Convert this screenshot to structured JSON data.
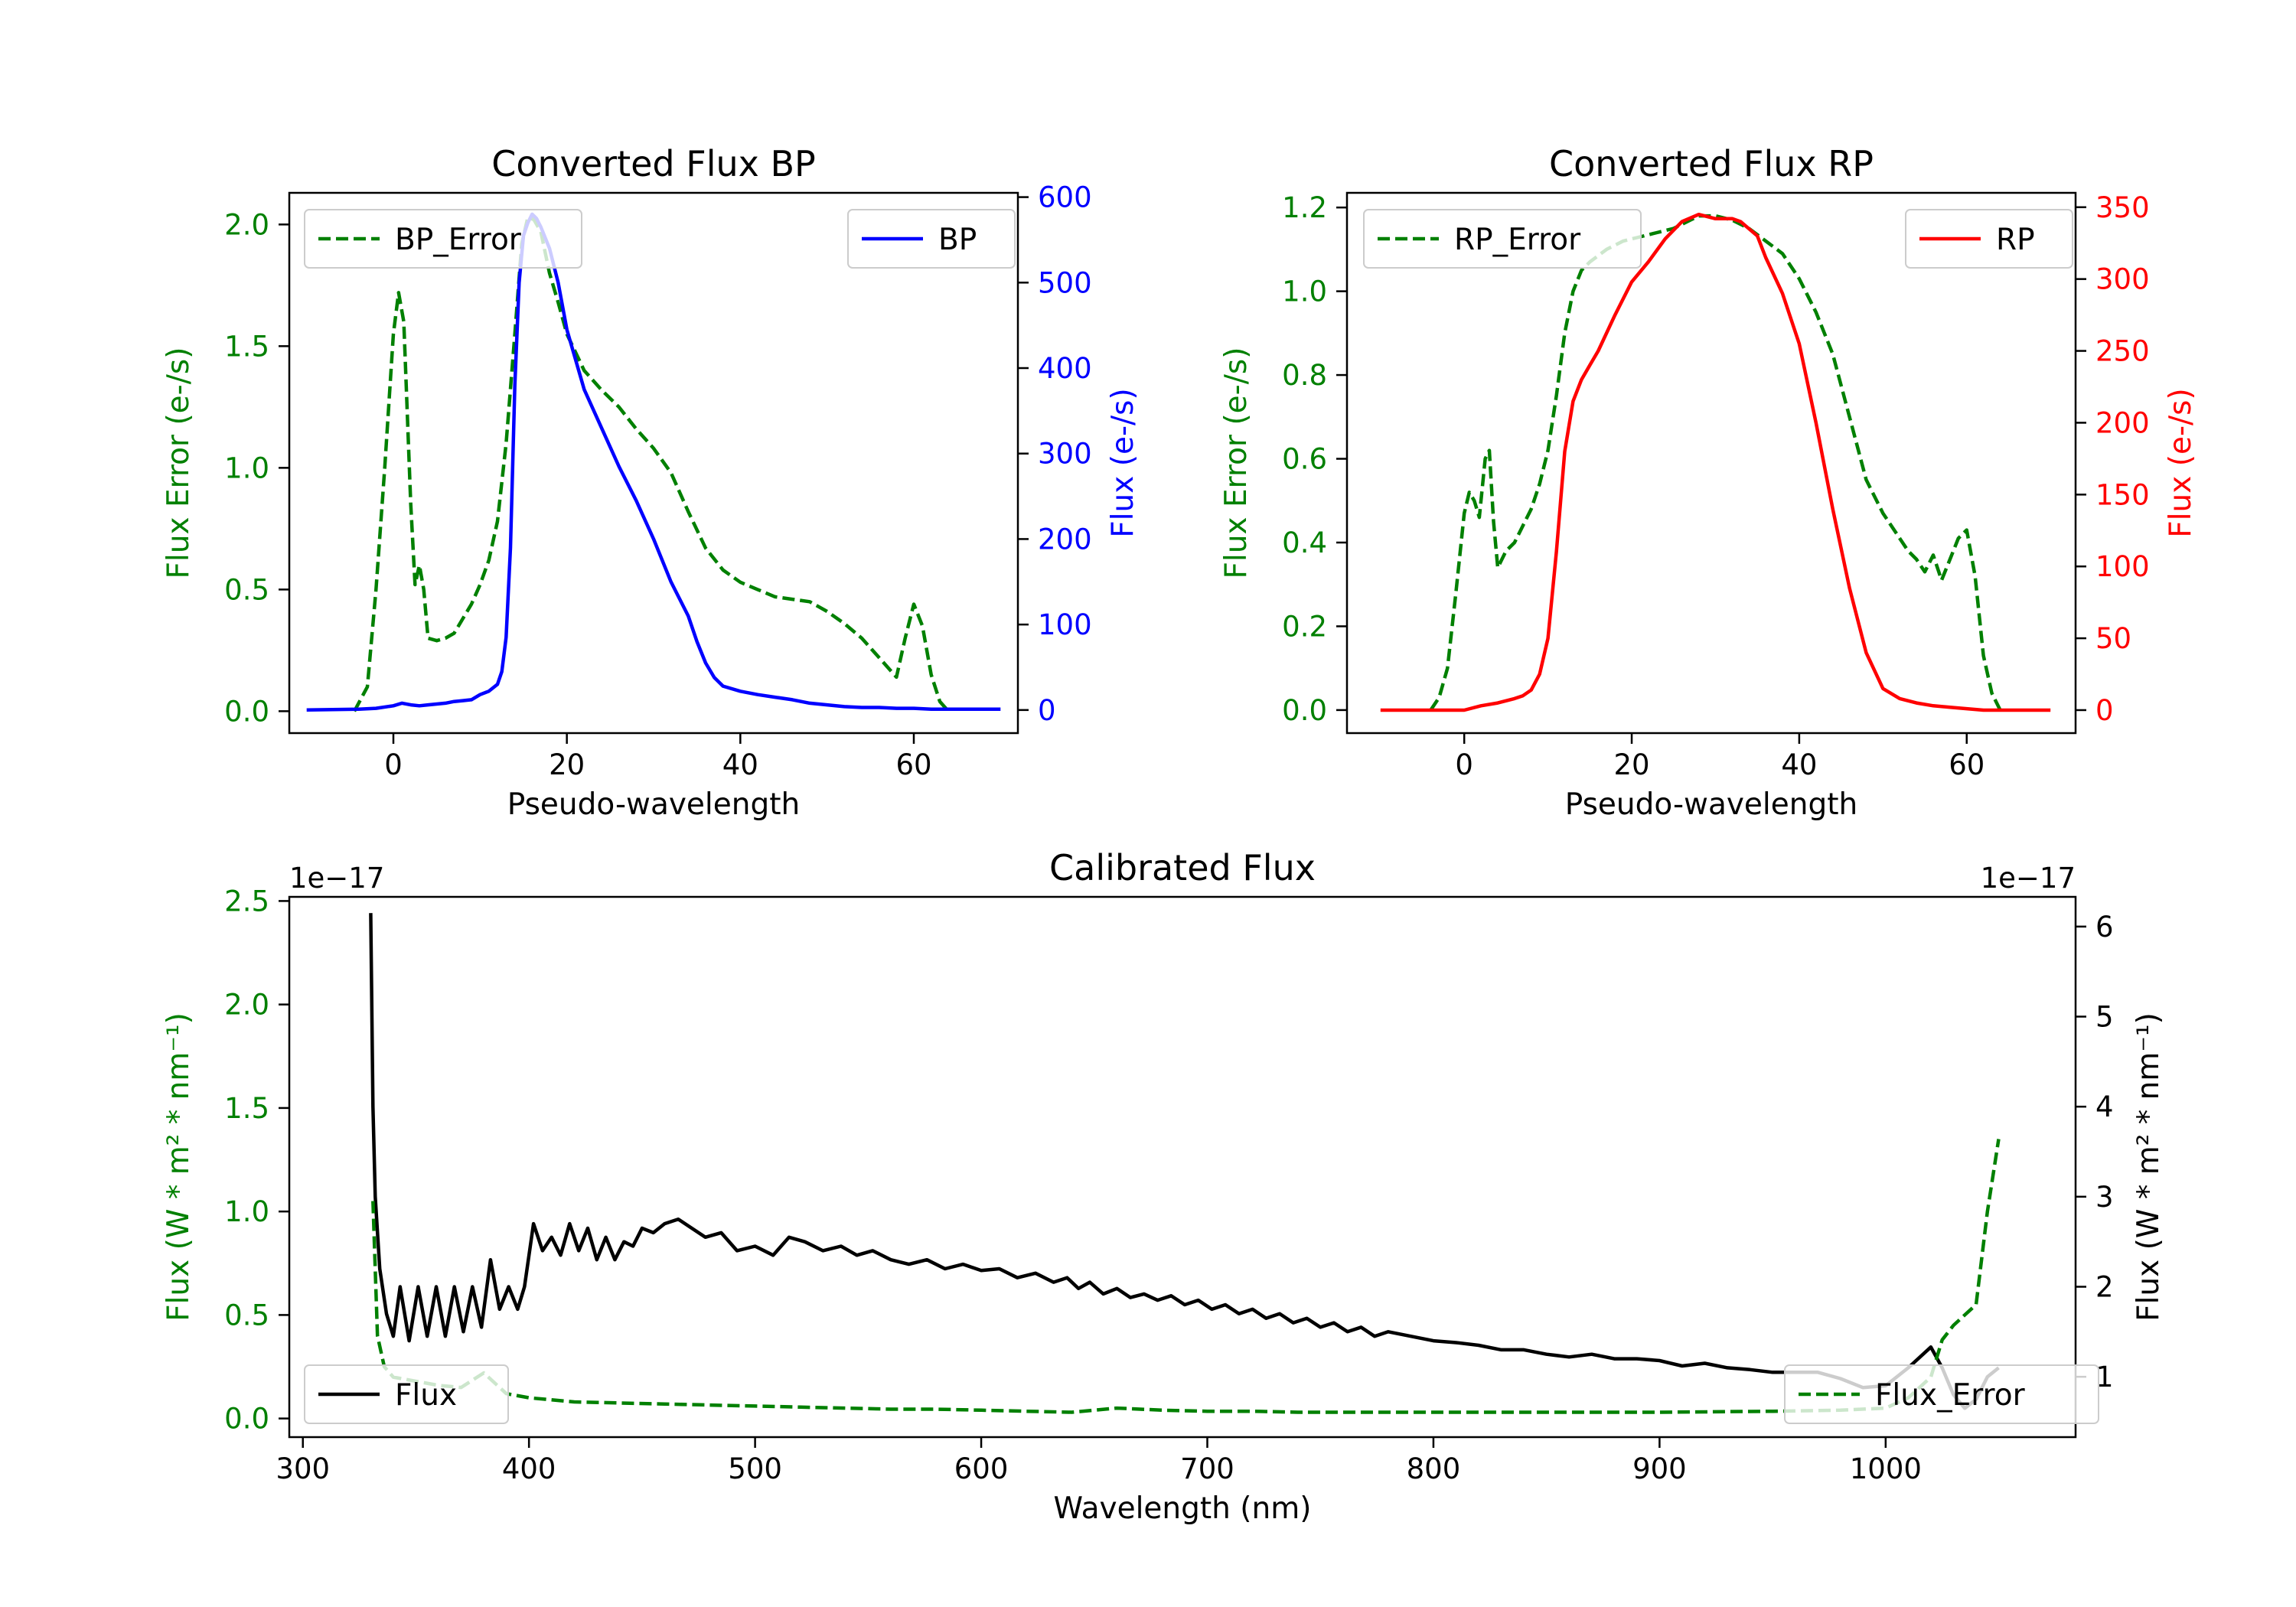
{
  "chart_data": [
    {
      "type": "line",
      "id": "bp",
      "title": "Converted Flux BP",
      "xlabel": "Pseudo-wavelength",
      "ylabel_left": "Flux Error (e-/s)",
      "ylabel_right": "Flux (e-/s)",
      "xlim": [
        -12,
        72
      ],
      "ylim_left": [
        -0.09,
        2.13
      ],
      "ylim_right": [
        -27,
        605
      ],
      "x_ticks": [
        0,
        20,
        40,
        60
      ],
      "y_ticks_left": [
        "0.0",
        "0.5",
        "1.0",
        "1.5",
        "2.0"
      ],
      "y_ticks_right": [
        "0",
        "100",
        "200",
        "300",
        "400",
        "500",
        "600"
      ],
      "colors": {
        "left_axis": "#008000",
        "right_axis": "#0000ff"
      },
      "legends": {
        "left": "BP_Error",
        "right": "BP"
      },
      "series": [
        {
          "name": "BP_Error",
          "axis": "left",
          "color": "#008000",
          "style": "dashed",
          "x": [
            -4.5,
            -3,
            -2,
            -1,
            0,
            0.6,
            1.2,
            2,
            2.5,
            3,
            3.5,
            4,
            5,
            6,
            7,
            8,
            9,
            10,
            11,
            12,
            13,
            14,
            14.8,
            15.5,
            16.2,
            17,
            18,
            19,
            20,
            22,
            24,
            26,
            28,
            30,
            32,
            34,
            36,
            38,
            40,
            42,
            44,
            46,
            48,
            50,
            52,
            54,
            56,
            58,
            59,
            60,
            61,
            62,
            63,
            64
          ],
          "y": [
            0.0,
            0.1,
            0.5,
            1.0,
            1.55,
            1.72,
            1.6,
            0.85,
            0.52,
            0.6,
            0.5,
            0.3,
            0.29,
            0.3,
            0.32,
            0.38,
            0.44,
            0.52,
            0.62,
            0.78,
            1.1,
            1.55,
            1.92,
            2.03,
            2.02,
            1.97,
            1.8,
            1.68,
            1.55,
            1.4,
            1.32,
            1.25,
            1.16,
            1.08,
            0.98,
            0.82,
            0.67,
            0.58,
            0.53,
            0.5,
            0.47,
            0.46,
            0.45,
            0.41,
            0.36,
            0.3,
            0.22,
            0.14,
            0.3,
            0.44,
            0.35,
            0.15,
            0.04,
            0.0
          ]
        },
        {
          "name": "BP",
          "axis": "right",
          "color": "#0000ff",
          "style": "solid",
          "x": [
            -10,
            -4,
            -2,
            0,
            1,
            2,
            3,
            4,
            5,
            6,
            7,
            8,
            9,
            10,
            11,
            12,
            12.5,
            13,
            13.5,
            14,
            14.5,
            15,
            15.5,
            16,
            16.5,
            17,
            18,
            19,
            20,
            22,
            24,
            26,
            28,
            30,
            32,
            34,
            35,
            36,
            37,
            38,
            40,
            42,
            44,
            46,
            48,
            50,
            52,
            54,
            56,
            58,
            60,
            62,
            64,
            66,
            70
          ],
          "y": [
            0,
            1,
            2,
            5,
            8,
            6,
            5,
            6,
            7,
            8,
            10,
            11,
            12,
            18,
            22,
            30,
            45,
            85,
            190,
            380,
            500,
            555,
            570,
            580,
            575,
            565,
            540,
            500,
            445,
            375,
            330,
            285,
            245,
            200,
            150,
            110,
            80,
            55,
            38,
            28,
            22,
            18,
            15,
            12,
            8,
            6,
            4,
            3,
            3,
            2,
            2,
            1,
            1,
            1,
            1
          ]
        }
      ]
    },
    {
      "type": "line",
      "id": "rp",
      "title": "Converted Flux RP",
      "xlabel": "Pseudo-wavelength",
      "ylabel_left": "Flux Error (e-/s)",
      "ylabel_right": "Flux (e-/s)",
      "xlim": [
        -14,
        73
      ],
      "ylim_left": [
        -0.055,
        1.235
      ],
      "ylim_right": [
        -16,
        360
      ],
      "x_ticks": [
        0,
        20,
        40,
        60
      ],
      "y_ticks_left": [
        "0.0",
        "0.2",
        "0.4",
        "0.6",
        "0.8",
        "1.0",
        "1.2"
      ],
      "y_ticks_right": [
        "0",
        "50",
        "100",
        "150",
        "200",
        "250",
        "300",
        "350"
      ],
      "colors": {
        "left_axis": "#008000",
        "right_axis": "#ff0000"
      },
      "legends": {
        "left": "RP_Error",
        "right": "RP"
      },
      "series": [
        {
          "name": "RP_Error",
          "axis": "left",
          "color": "#008000",
          "style": "dashed",
          "x": [
            -4,
            -3,
            -2,
            -1,
            0,
            0.6,
            1.2,
            1.8,
            2.5,
            3,
            3.5,
            4,
            5,
            6,
            7,
            8,
            9,
            10,
            11,
            12,
            13,
            14,
            15,
            17,
            19,
            21,
            23,
            25,
            27,
            28,
            30,
            32,
            34,
            36,
            38,
            40,
            42,
            44,
            46,
            48,
            50,
            52,
            53,
            54,
            55,
            56,
            57,
            58,
            59,
            60,
            61,
            62,
            63,
            64
          ],
          "y": [
            0.0,
            0.03,
            0.1,
            0.28,
            0.47,
            0.52,
            0.5,
            0.46,
            0.6,
            0.62,
            0.45,
            0.34,
            0.38,
            0.4,
            0.44,
            0.48,
            0.54,
            0.62,
            0.75,
            0.9,
            1.0,
            1.05,
            1.07,
            1.1,
            1.12,
            1.13,
            1.14,
            1.15,
            1.17,
            1.18,
            1.18,
            1.17,
            1.15,
            1.12,
            1.09,
            1.03,
            0.95,
            0.85,
            0.7,
            0.55,
            0.47,
            0.41,
            0.38,
            0.36,
            0.33,
            0.37,
            0.31,
            0.36,
            0.41,
            0.43,
            0.32,
            0.13,
            0.04,
            0.0
          ]
        },
        {
          "name": "RP",
          "axis": "right",
          "color": "#ff0000",
          "style": "solid",
          "x": [
            -10,
            -4,
            0,
            2,
            4,
            6,
            7,
            8,
            9,
            10,
            11,
            12,
            13,
            14,
            15,
            16,
            18,
            20,
            22,
            24,
            26,
            28,
            30,
            32,
            33,
            35,
            36,
            38,
            40,
            42,
            44,
            46,
            48,
            50,
            52,
            54,
            56,
            58,
            60,
            62,
            66,
            70
          ],
          "y": [
            0,
            0,
            0,
            3,
            5,
            8,
            10,
            14,
            25,
            50,
            110,
            180,
            215,
            230,
            240,
            250,
            275,
            298,
            312,
            328,
            340,
            345,
            342,
            342,
            340,
            330,
            315,
            290,
            255,
            200,
            140,
            85,
            40,
            15,
            8,
            5,
            3,
            2,
            1,
            0,
            0,
            0
          ]
        }
      ]
    },
    {
      "type": "line",
      "id": "calibrated",
      "title": "Calibrated Flux",
      "xlabel": "Wavelength (nm)",
      "ylabel_left": "Flux (W * m² * nm⁻¹)",
      "ylabel_right": "Flux (W * m² * nm⁻¹)",
      "offset_left": "1e−17",
      "offset_right": "1e−17",
      "xlim": [
        294,
        1084
      ],
      "ylim_left": [
        -0.09,
        2.52
      ],
      "ylim_right": [
        0.33,
        6.33
      ],
      "x_ticks": [
        300,
        400,
        500,
        600,
        700,
        800,
        900,
        1000
      ],
      "y_ticks_left": [
        "0.0",
        "0.5",
        "1.0",
        "1.5",
        "2.0",
        "2.5"
      ],
      "y_ticks_right": [
        "1",
        "2",
        "3",
        "4",
        "5",
        "6"
      ],
      "colors": {
        "left_axis": "#008000",
        "right_axis": "#000000"
      },
      "legends": {
        "right_series": "Flux",
        "left_series": "Flux_Error"
      },
      "series": [
        {
          "name": "Flux",
          "axis": "right",
          "color": "#000000",
          "style": "solid",
          "x": [
            330,
            331,
            332,
            334,
            337,
            340,
            343,
            347,
            351,
            355,
            359,
            363,
            367,
            371,
            375,
            379,
            383,
            387,
            391,
            395,
            398,
            402,
            406,
            410,
            414,
            418,
            422,
            426,
            430,
            434,
            438,
            442,
            446,
            450,
            455,
            460,
            466,
            472,
            478,
            485,
            492,
            500,
            508,
            515,
            522,
            530,
            538,
            545,
            552,
            560,
            568,
            576,
            584,
            592,
            600,
            608,
            616,
            624,
            632,
            638,
            643,
            648,
            654,
            660,
            666,
            672,
            678,
            684,
            690,
            696,
            702,
            708,
            714,
            720,
            726,
            732,
            738,
            744,
            750,
            756,
            762,
            768,
            774,
            780,
            790,
            800,
            810,
            820,
            830,
            840,
            850,
            860,
            870,
            880,
            890,
            900,
            910,
            920,
            930,
            940,
            950,
            960,
            970,
            980,
            990,
            1000,
            1010,
            1020,
            1025,
            1030,
            1035,
            1040,
            1045,
            1050
          ],
          "y": [
            6.15,
            4.0,
            3.0,
            2.2,
            1.7,
            1.45,
            2.0,
            1.4,
            2.0,
            1.45,
            2.0,
            1.45,
            2.0,
            1.5,
            2.0,
            1.55,
            2.3,
            1.75,
            2.0,
            1.75,
            2.0,
            2.7,
            2.4,
            2.55,
            2.35,
            2.7,
            2.4,
            2.65,
            2.3,
            2.55,
            2.3,
            2.5,
            2.45,
            2.65,
            2.6,
            2.7,
            2.75,
            2.65,
            2.55,
            2.6,
            2.4,
            2.45,
            2.35,
            2.55,
            2.5,
            2.4,
            2.45,
            2.35,
            2.4,
            2.3,
            2.25,
            2.3,
            2.2,
            2.25,
            2.18,
            2.2,
            2.1,
            2.15,
            2.05,
            2.1,
            1.98,
            2.05,
            1.92,
            1.98,
            1.88,
            1.92,
            1.85,
            1.9,
            1.8,
            1.85,
            1.75,
            1.8,
            1.7,
            1.75,
            1.65,
            1.7,
            1.6,
            1.65,
            1.55,
            1.6,
            1.5,
            1.55,
            1.45,
            1.5,
            1.45,
            1.4,
            1.38,
            1.35,
            1.3,
            1.3,
            1.25,
            1.22,
            1.25,
            1.2,
            1.2,
            1.18,
            1.12,
            1.15,
            1.1,
            1.08,
            1.05,
            1.05,
            1.05,
            0.98,
            0.88,
            0.9,
            1.1,
            1.33,
            1.1,
            0.8,
            0.65,
            0.75,
            1.0,
            1.1
          ]
        },
        {
          "name": "Flux_Error",
          "axis": "left",
          "color": "#008000",
          "style": "dashed",
          "x": [
            331,
            333,
            336,
            340,
            345,
            350,
            360,
            370,
            380,
            390,
            400,
            420,
            440,
            460,
            480,
            500,
            520,
            540,
            560,
            580,
            600,
            620,
            640,
            660,
            680,
            700,
            720,
            740,
            760,
            780,
            800,
            850,
            900,
            950,
            980,
            1000,
            1010,
            1020,
            1025,
            1030,
            1035,
            1040,
            1045,
            1050
          ],
          "y": [
            1.05,
            0.4,
            0.25,
            0.2,
            0.19,
            0.18,
            0.16,
            0.15,
            0.22,
            0.12,
            0.1,
            0.08,
            0.075,
            0.07,
            0.065,
            0.06,
            0.055,
            0.05,
            0.045,
            0.045,
            0.04,
            0.035,
            0.03,
            0.05,
            0.04,
            0.035,
            0.035,
            0.03,
            0.03,
            0.03,
            0.03,
            0.03,
            0.03,
            0.035,
            0.04,
            0.05,
            0.1,
            0.2,
            0.38,
            0.45,
            0.5,
            0.55,
            1.0,
            1.35
          ]
        }
      ]
    }
  ]
}
